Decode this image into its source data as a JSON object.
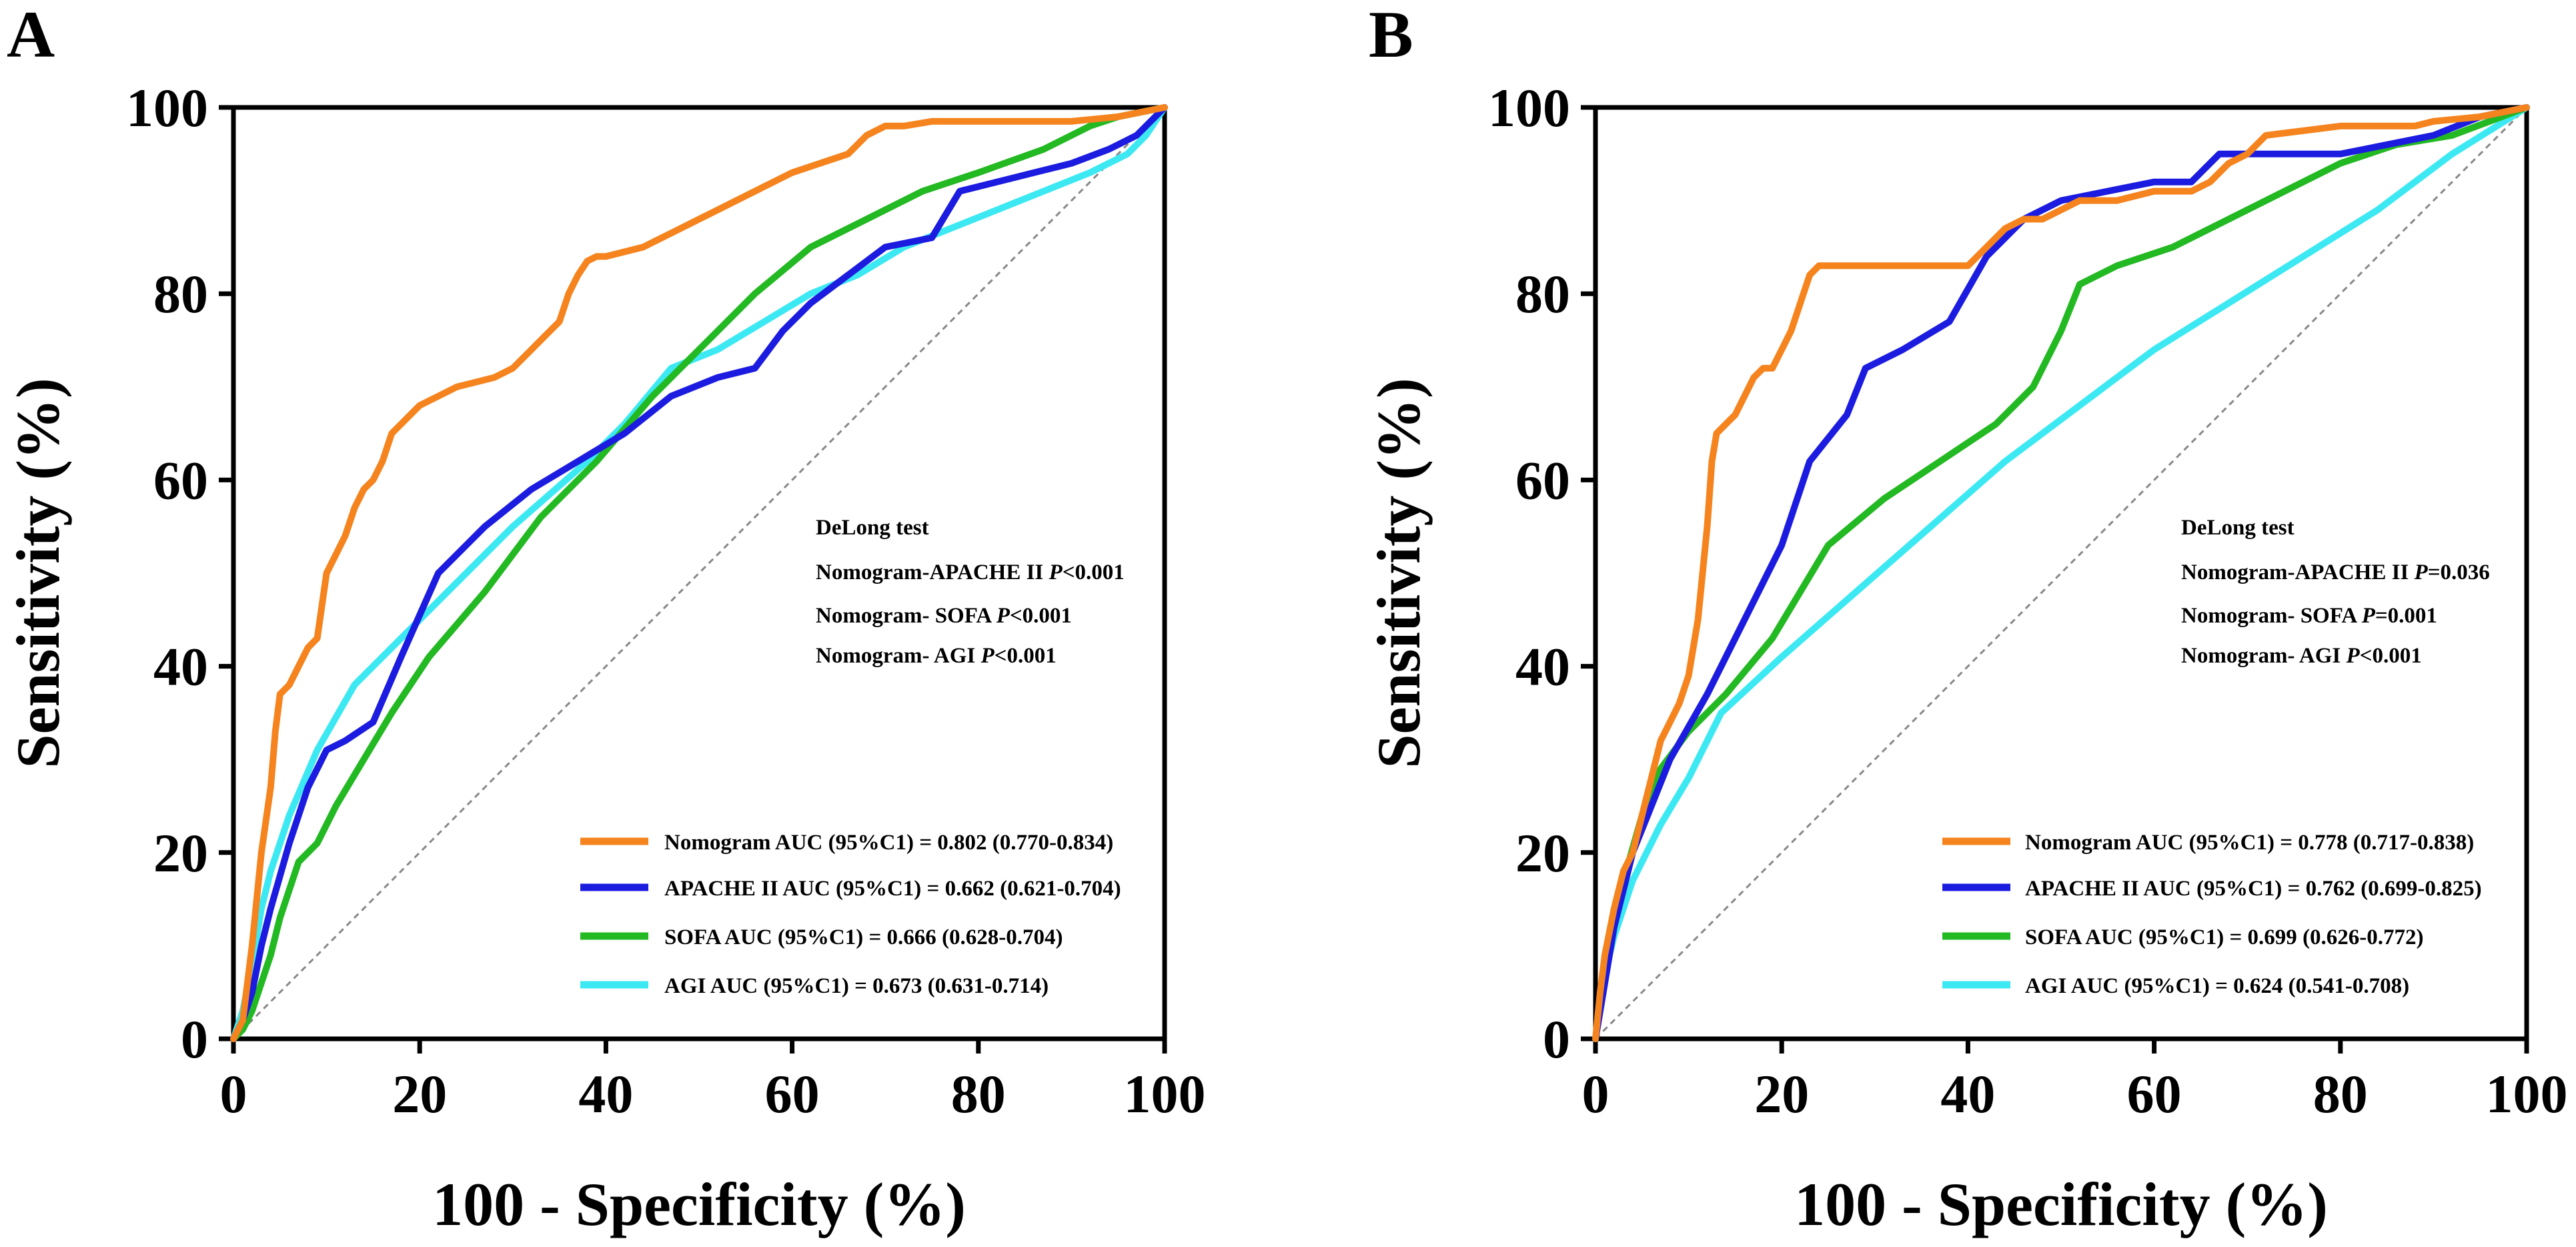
{
  "chart_data": [
    {
      "type": "line",
      "panel_label": "A",
      "xlabel": "100 - Specificity (%)",
      "ylabel": "Sensitivity (%)",
      "xlim": [
        0,
        100
      ],
      "ylim": [
        0,
        100
      ],
      "xticks": [
        "0",
        "20",
        "40",
        "60",
        "80",
        "100"
      ],
      "yticks": [
        "0",
        "20",
        "40",
        "60",
        "80",
        "100"
      ],
      "grid": false,
      "reference_line": true,
      "test_title": "DeLong test",
      "tests": [
        {
          "label": "Nomogram-APACHE II ",
          "p_symbol": "P",
          "p_value": "<0.001"
        },
        {
          "label": "Nomogram- SOFA ",
          "p_symbol": "P",
          "p_value": "<0.001"
        },
        {
          "label": "Nomogram- AGI ",
          "p_symbol": "P",
          "p_value": "<0.001"
        }
      ],
      "legend_position": "bottom-right",
      "series": [
        {
          "name": "Nomogram",
          "legend": "Nomogram AUC (95%C1) = 0.802 (0.770-0.834)",
          "color": "#f5841f",
          "x": [
            0,
            1,
            2,
            3,
            4,
            4.5,
            5,
            6,
            7,
            8,
            9,
            10,
            11,
            12,
            13,
            14,
            15,
            16,
            17,
            18,
            19,
            20,
            21,
            22,
            24,
            26,
            28,
            30,
            32,
            34,
            35,
            36,
            37,
            38,
            39,
            40,
            44,
            46,
            48,
            50,
            52,
            54,
            56,
            58,
            60,
            63,
            66,
            68,
            70,
            72,
            75,
            78,
            80,
            90,
            95,
            100
          ],
          "y": [
            0,
            2,
            10,
            20,
            27,
            33,
            37,
            38,
            40,
            42,
            43,
            50,
            52,
            54,
            57,
            59,
            60,
            62,
            65,
            66,
            67,
            68,
            68.5,
            69,
            70,
            70.5,
            71,
            72,
            74,
            76,
            77,
            80,
            82,
            83.5,
            84,
            84,
            85,
            86,
            87,
            88,
            89,
            90,
            91,
            92,
            93,
            94,
            95,
            97,
            98,
            98,
            98.5,
            98.5,
            98.5,
            98.5,
            99,
            100
          ]
        },
        {
          "name": "APACHE II",
          "legend": "APACHE II AUC (95%C1) = 0.662 (0.621-0.704)",
          "color": "#1c1ce0",
          "x": [
            0,
            1,
            2,
            3,
            4,
            6,
            8,
            10,
            12,
            15,
            18,
            22,
            27,
            32,
            37,
            42,
            47,
            52,
            56,
            59,
            62,
            66,
            70,
            75,
            78,
            82,
            86,
            90,
            94,
            96,
            97,
            98,
            100
          ],
          "y": [
            0,
            2,
            5,
            10,
            14,
            21,
            27,
            31,
            32,
            34,
            41,
            50,
            55,
            59,
            62,
            65,
            69,
            71,
            72,
            76,
            79,
            82,
            85,
            86,
            91,
            92,
            93,
            94,
            95.5,
            96.5,
            97,
            98,
            100
          ]
        },
        {
          "name": "SOFA",
          "legend": "SOFA AUC (95%C1) = 0.666 (0.628-0.704)",
          "color": "#23b922",
          "x": [
            0,
            1,
            2,
            3,
            4,
            5,
            7,
            9,
            11,
            14,
            17,
            21,
            27,
            33,
            39,
            45,
            51,
            56,
            62,
            68,
            74,
            80,
            87,
            92,
            95,
            100
          ],
          "y": [
            0,
            1,
            3,
            6,
            9,
            13,
            19,
            21,
            25,
            30,
            35,
            41,
            48,
            56,
            62,
            69,
            75,
            80,
            85,
            88,
            91,
            93,
            95.5,
            98,
            99,
            100
          ]
        },
        {
          "name": "AGI",
          "legend": "AGI AUC (95%C1) = 0.673 (0.631-0.714)",
          "color": "#3ce9f3",
          "x": [
            0,
            1,
            2,
            3,
            4,
            6,
            9,
            13,
            17,
            22,
            30,
            38,
            42,
            47,
            52,
            57,
            62,
            67,
            72,
            77,
            82,
            87,
            92,
            96,
            98,
            100
          ],
          "y": [
            0,
            3,
            8,
            14,
            18,
            24,
            31,
            38,
            42,
            47,
            55,
            62,
            66,
            72,
            74,
            77,
            80,
            82,
            85,
            87,
            89,
            91,
            93,
            95,
            97,
            100
          ]
        }
      ]
    },
    {
      "type": "line",
      "panel_label": "B",
      "xlabel": "100 - Specificity (%)",
      "ylabel": "Sensitivity (%)",
      "xlim": [
        0,
        100
      ],
      "ylim": [
        0,
        100
      ],
      "xticks": [
        "0",
        "20",
        "40",
        "60",
        "80",
        "100"
      ],
      "yticks": [
        "0",
        "20",
        "40",
        "60",
        "80",
        "100"
      ],
      "grid": false,
      "reference_line": true,
      "test_title": "DeLong test",
      "tests": [
        {
          "label": "Nomogram-APACHE II ",
          "p_symbol": "P",
          "p_value": "=0.036"
        },
        {
          "label": "Nomogram- SOFA ",
          "p_symbol": "P",
          "p_value": "=0.001"
        },
        {
          "label": "Nomogram- AGI ",
          "p_symbol": "P",
          "p_value": "<0.001"
        }
      ],
      "legend_position": "bottom-right",
      "series": [
        {
          "name": "Nomogram",
          "legend": "Nomogram AUC (95%C1) = 0.778 (0.717-0.838)",
          "color": "#f5841f",
          "x": [
            0,
            0.5,
            1,
            2,
            3,
            4,
            5,
            6,
            7,
            8,
            9,
            10,
            11,
            12,
            12.5,
            13,
            14,
            15,
            16,
            17,
            18,
            19,
            20,
            21,
            22,
            23,
            24,
            30,
            40,
            42,
            44,
            46,
            48,
            50,
            52,
            56,
            60,
            64,
            66,
            68,
            70,
            72,
            80,
            88,
            90,
            95,
            100
          ],
          "y": [
            0,
            5,
            9,
            14,
            18,
            20,
            24,
            28,
            32,
            34,
            36,
            39,
            45,
            55,
            62,
            65,
            66,
            67,
            69,
            71,
            72,
            72,
            74,
            76,
            79,
            82,
            83,
            83,
            83,
            85,
            87,
            88,
            88,
            89,
            90,
            90,
            91,
            91,
            92,
            94,
            95,
            97,
            98,
            98,
            98.5,
            99,
            100
          ]
        },
        {
          "name": "APACHE II",
          "legend": "APACHE II AUC (95%C1) = 0.762 (0.699-0.825)",
          "color": "#1c1ce0",
          "x": [
            0,
            1,
            2,
            3,
            4,
            6,
            8,
            12,
            16,
            20,
            23,
            27,
            29,
            33,
            38,
            42,
            46,
            50,
            55,
            60,
            64,
            67,
            70,
            80,
            90,
            95,
            100
          ],
          "y": [
            0,
            6,
            12,
            16,
            20,
            25,
            30,
            37,
            45,
            53,
            62,
            67,
            72,
            74,
            77,
            84,
            88,
            90,
            91,
            92,
            92,
            95,
            95,
            95,
            97,
            99,
            100
          ]
        },
        {
          "name": "SOFA",
          "legend": "SOFA AUC (95%C1) = 0.699 (0.626-0.772)",
          "color": "#23b922",
          "x": [
            0,
            1,
            2,
            3,
            5,
            7,
            10,
            14,
            19,
            25,
            31,
            37,
            43,
            47,
            50,
            52,
            56,
            62,
            68,
            74,
            80,
            86,
            92,
            96,
            100
          ],
          "y": [
            0,
            7,
            12,
            17,
            24,
            29,
            33,
            37,
            43,
            53,
            58,
            62,
            66,
            70,
            76,
            81,
            83,
            85,
            88,
            91,
            94,
            96,
            97,
            98.5,
            100
          ]
        },
        {
          "name": "AGI",
          "legend": "AGI AUC (95%C1) = 0.624 (0.541-0.708)",
          "color": "#3ce9f3",
          "x": [
            0,
            1,
            2,
            4,
            7,
            10,
            13.5,
            20,
            28,
            36,
            44,
            52,
            60,
            68,
            76,
            84,
            92,
            100
          ],
          "y": [
            0,
            7,
            11,
            17,
            23,
            28,
            35,
            41,
            48,
            55,
            62,
            68,
            74,
            79,
            84,
            89,
            95,
            100
          ]
        }
      ]
    }
  ]
}
